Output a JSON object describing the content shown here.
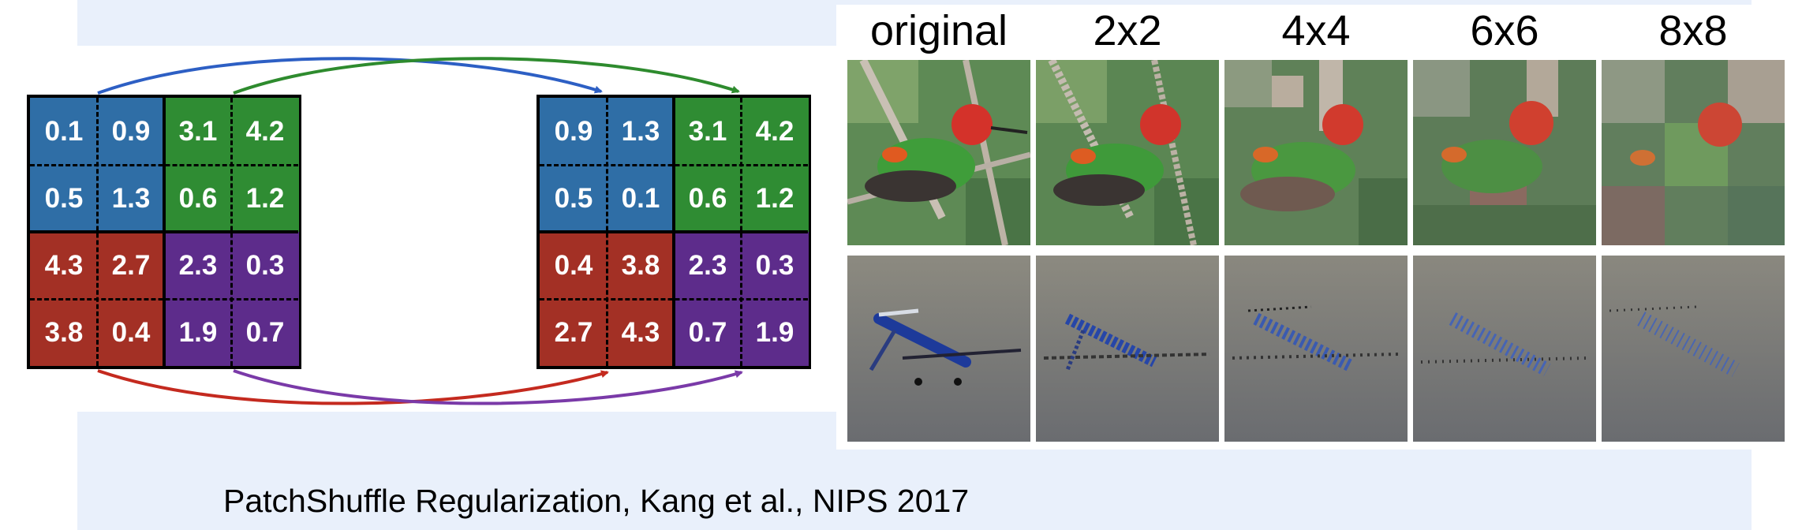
{
  "caption": "PatchShuffle Regularization, Kang et al., NIPS 2017",
  "colors": {
    "blue": "#2f6ea6",
    "green": "#2f8c33",
    "red": "#a33025",
    "purple": "#5d2c8b"
  },
  "grid_before": [
    [
      "0.1",
      "0.9",
      "3.1",
      "4.2"
    ],
    [
      "0.5",
      "1.3",
      "0.6",
      "1.2"
    ],
    [
      "4.3",
      "2.7",
      "2.3",
      "0.3"
    ],
    [
      "3.8",
      "0.4",
      "1.9",
      "0.7"
    ]
  ],
  "grid_after": [
    [
      "0.9",
      "1.3",
      "3.1",
      "4.2"
    ],
    [
      "0.5",
      "0.1",
      "0.6",
      "1.2"
    ],
    [
      "0.4",
      "3.8",
      "2.3",
      "0.3"
    ],
    [
      "2.7",
      "4.3",
      "0.7",
      "1.9"
    ]
  ],
  "columns": [
    "original",
    "2x2",
    "4x4",
    "6x6",
    "8x8"
  ]
}
